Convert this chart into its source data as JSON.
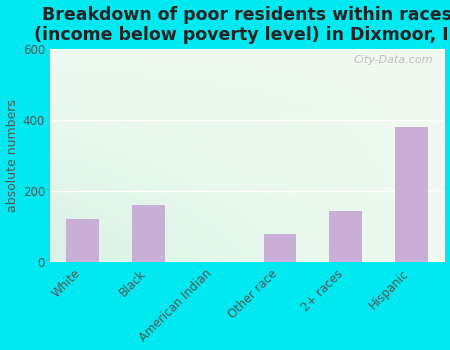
{
  "title": "Breakdown of poor residents within races\n(income below poverty level) in Dixmoor, IL",
  "ylabel": "absolute numbers",
  "categories": [
    "White",
    "Black",
    "American Indian",
    "Other race",
    "2+ races",
    "Hispanic"
  ],
  "values": [
    120,
    160,
    0,
    80,
    145,
    380
  ],
  "bar_color": "#c9aed6",
  "ylim": [
    0,
    600
  ],
  "yticks": [
    0,
    200,
    400,
    600
  ],
  "bg_outer": "#00e8f0",
  "title_fontsize": 12.5,
  "ylabel_fontsize": 9,
  "tick_fontsize": 8.5,
  "watermark": "City-Data.com",
  "grad_top_left": "#b8e8d8",
  "grad_bottom_right": "#f0faf0"
}
